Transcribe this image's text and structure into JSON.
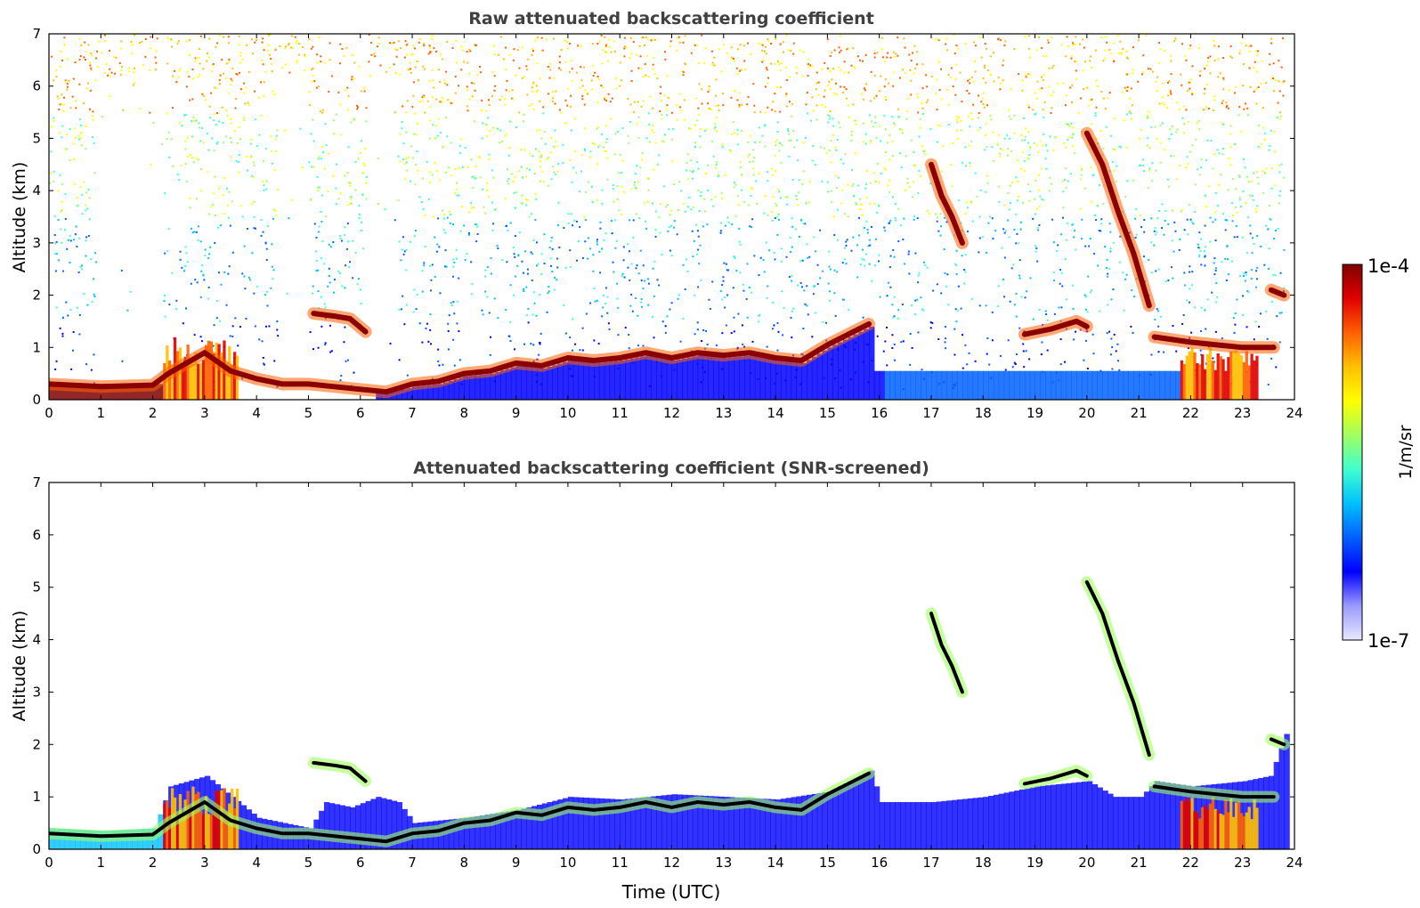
{
  "chart_data": [
    {
      "type": "heatmap",
      "title": "Raw attenuated backscattering coefficient",
      "xlabel": "",
      "ylabel": "Altitude (km)",
      "xlim": [
        0,
        24
      ],
      "ylim": [
        0,
        7
      ],
      "xticks": [
        "0",
        "1",
        "2",
        "3",
        "4",
        "5",
        "6",
        "7",
        "8",
        "9",
        "10",
        "11",
        "12",
        "13",
        "14",
        "15",
        "16",
        "17",
        "18",
        "19",
        "20",
        "21",
        "22",
        "23",
        "24"
      ],
      "yticks": [
        "0",
        "1",
        "2",
        "3",
        "4",
        "5",
        "6",
        "7"
      ],
      "screened": false,
      "features": [
        {
          "name": "boundary layer top",
          "kind": "line",
          "points": [
            [
              0,
              0.3
            ],
            [
              1,
              0.25
            ],
            [
              2,
              0.28
            ],
            [
              2.3,
              0.5
            ],
            [
              3,
              0.9
            ],
            [
              3.5,
              0.55
            ],
            [
              4,
              0.4
            ],
            [
              4.5,
              0.3
            ],
            [
              5,
              0.3
            ],
            [
              5.5,
              0.25
            ],
            [
              6,
              0.2
            ],
            [
              6.5,
              0.15
            ],
            [
              7,
              0.3
            ],
            [
              7.5,
              0.35
            ],
            [
              8,
              0.5
            ],
            [
              8.5,
              0.55
            ],
            [
              9,
              0.7
            ],
            [
              9.5,
              0.65
            ],
            [
              10,
              0.8
            ],
            [
              10.5,
              0.75
            ],
            [
              11,
              0.8
            ],
            [
              11.5,
              0.9
            ],
            [
              12,
              0.8
            ],
            [
              12.5,
              0.9
            ],
            [
              13,
              0.85
            ],
            [
              13.5,
              0.9
            ],
            [
              14,
              0.8
            ],
            [
              14.5,
              0.75
            ],
            [
              15,
              1.05
            ],
            [
              15.5,
              1.3
            ],
            [
              15.8,
              1.45
            ]
          ]
        },
        {
          "name": "aerosol layer 5-6h",
          "kind": "line",
          "points": [
            [
              5.1,
              1.65
            ],
            [
              5.5,
              1.6
            ],
            [
              5.8,
              1.55
            ],
            [
              6.1,
              1.3
            ]
          ]
        },
        {
          "name": "cirrus 17h",
          "kind": "line",
          "points": [
            [
              17.0,
              4.5
            ],
            [
              17.2,
              3.9
            ],
            [
              17.4,
              3.5
            ],
            [
              17.6,
              3.0
            ]
          ]
        },
        {
          "name": "cirrus 20-21h",
          "kind": "line",
          "points": [
            [
              20.0,
              5.1
            ],
            [
              20.3,
              4.5
            ],
            [
              20.6,
              3.6
            ],
            [
              20.9,
              2.8
            ],
            [
              21.2,
              1.8
            ]
          ]
        },
        {
          "name": "layer 19-20h",
          "kind": "line",
          "points": [
            [
              18.8,
              1.25
            ],
            [
              19.3,
              1.35
            ],
            [
              19.8,
              1.5
            ],
            [
              20.0,
              1.4
            ]
          ]
        },
        {
          "name": "layer 21-24h",
          "kind": "line",
          "points": [
            [
              21.3,
              1.2
            ],
            [
              22.0,
              1.1
            ],
            [
              22.5,
              1.05
            ],
            [
              23.0,
              1.0
            ],
            [
              23.6,
              1.0
            ]
          ]
        },
        {
          "name": "layer 23.6h",
          "kind": "line",
          "points": [
            [
              23.55,
              2.1
            ],
            [
              23.8,
              2.0
            ]
          ]
        }
      ],
      "fill_regions": [
        {
          "name": "clear sky / precipitation gap",
          "kind": "gap",
          "x": [
            0.9,
            2.2
          ]
        },
        {
          "name": "noisy gap",
          "kind": "gap",
          "x": [
            4.4,
            5.0
          ]
        },
        {
          "name": "noisy gap",
          "kind": "gap",
          "x": [
            6.1,
            6.7
          ]
        },
        {
          "name": "dense aerosol 2-3.5h",
          "kind": "aerosol",
          "x": [
            2.2,
            3.6
          ],
          "ymax": 1.2
        },
        {
          "name": "dense aerosol 21.5-24h",
          "kind": "aerosol",
          "x": [
            21.8,
            23.3
          ],
          "ymax": 1.0
        }
      ]
    },
    {
      "type": "heatmap",
      "title": "Attenuated backscattering coefficient (SNR-screened)",
      "xlabel": "Time (UTC)",
      "ylabel": "Altitude (km)",
      "xlim": [
        0,
        24
      ],
      "ylim": [
        0,
        7
      ],
      "xticks": [
        "0",
        "1",
        "2",
        "3",
        "4",
        "5",
        "6",
        "7",
        "8",
        "9",
        "10",
        "11",
        "12",
        "13",
        "14",
        "15",
        "16",
        "17",
        "18",
        "19",
        "20",
        "21",
        "22",
        "23",
        "24"
      ],
      "yticks": [
        "0",
        "1",
        "2",
        "3",
        "4",
        "5",
        "6",
        "7"
      ],
      "screened": true,
      "screened_ceiling_points": [
        [
          0,
          0.4
        ],
        [
          1,
          0.35
        ],
        [
          2,
          0.4
        ],
        [
          2.3,
          1.2
        ],
        [
          3,
          1.4
        ],
        [
          3.5,
          1.0
        ],
        [
          4,
          0.6
        ],
        [
          4.5,
          0.5
        ],
        [
          5,
          0.4
        ],
        [
          5.3,
          0.9
        ],
        [
          5.8,
          0.8
        ],
        [
          6.3,
          1.0
        ],
        [
          6.7,
          0.9
        ],
        [
          7,
          0.5
        ],
        [
          8,
          0.6
        ],
        [
          9,
          0.75
        ],
        [
          10,
          1.0
        ],
        [
          11,
          0.95
        ],
        [
          12,
          1.05
        ],
        [
          13,
          1.0
        ],
        [
          14,
          0.95
        ],
        [
          15,
          1.1
        ],
        [
          15.8,
          1.5
        ],
        [
          16,
          0.9
        ],
        [
          17,
          0.9
        ],
        [
          18,
          1.0
        ],
        [
          19,
          1.2
        ],
        [
          20,
          1.3
        ],
        [
          20.5,
          1.0
        ],
        [
          21,
          1.0
        ],
        [
          21.3,
          1.3
        ],
        [
          22,
          1.2
        ],
        [
          23,
          1.3
        ],
        [
          23.5,
          1.4
        ],
        [
          23.8,
          2.2
        ]
      ]
    }
  ],
  "colorbar": {
    "label": "1/m/sr",
    "min_label": "1e-7",
    "max_label": "1e-4",
    "stops": [
      "#e8e8ff",
      "#9a9aff",
      "#0000ff",
      "#0060ff",
      "#00c0ff",
      "#40ffd0",
      "#a0ff60",
      "#ffff00",
      "#ffc000",
      "#ff6000",
      "#e00000",
      "#800000"
    ]
  },
  "colors": {
    "background": "#ffffff",
    "title": "#404040",
    "axis": "#000000",
    "layer_core": "#8b0000",
    "screened_core": "#000000"
  }
}
